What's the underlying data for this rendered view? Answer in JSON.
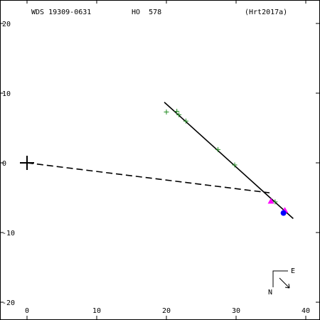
{
  "colors": {
    "frame": "#000000",
    "orbit": "#000000",
    "node_line": "#000000",
    "obs_plus": "#228b22",
    "obs_triangle": "#ff00ff",
    "predicted": "#0000ff"
  },
  "header": {
    "wds": "WDS 19309-0631",
    "discoverer": "HO  578",
    "reference": "(Hrt2017a)"
  },
  "compass": {
    "north": "N",
    "east": "E"
  },
  "chart_data": {
    "type": "scatter",
    "title": "",
    "xlabel": "",
    "ylabel": "",
    "xlim": [
      -4,
      42
    ],
    "ylim": [
      -22,
      23
    ],
    "grid": false,
    "xticks": [
      0,
      10,
      20,
      30,
      40
    ],
    "yticks": [
      20,
      10,
      0,
      -10,
      -20
    ],
    "xtick_labels": [
      "0",
      "10",
      "20",
      "30",
      "40"
    ],
    "ytick_labels": [
      "20",
      "10",
      "0",
      "-10",
      "-20"
    ],
    "primary": {
      "x": 0,
      "y": 0
    },
    "orbit_segment": [
      [
        19.7,
        8.7
      ],
      [
        38.2,
        -8.0
      ]
    ],
    "node_line": [
      [
        0,
        0
      ],
      [
        34.8,
        -4.3
      ]
    ],
    "observations_plus": [
      [
        20.0,
        7.3
      ],
      [
        21.5,
        7.4
      ],
      [
        21.8,
        6.9
      ],
      [
        22.8,
        6.0
      ],
      [
        27.4,
        1.9
      ],
      [
        29.8,
        -0.3
      ],
      [
        35.6,
        -5.6
      ]
    ],
    "observations_triangle": [
      [
        35.0,
        -5.5
      ],
      [
        37.0,
        -6.8
      ]
    ],
    "predicted_position": {
      "x": 36.8,
      "y": -7.2
    }
  }
}
